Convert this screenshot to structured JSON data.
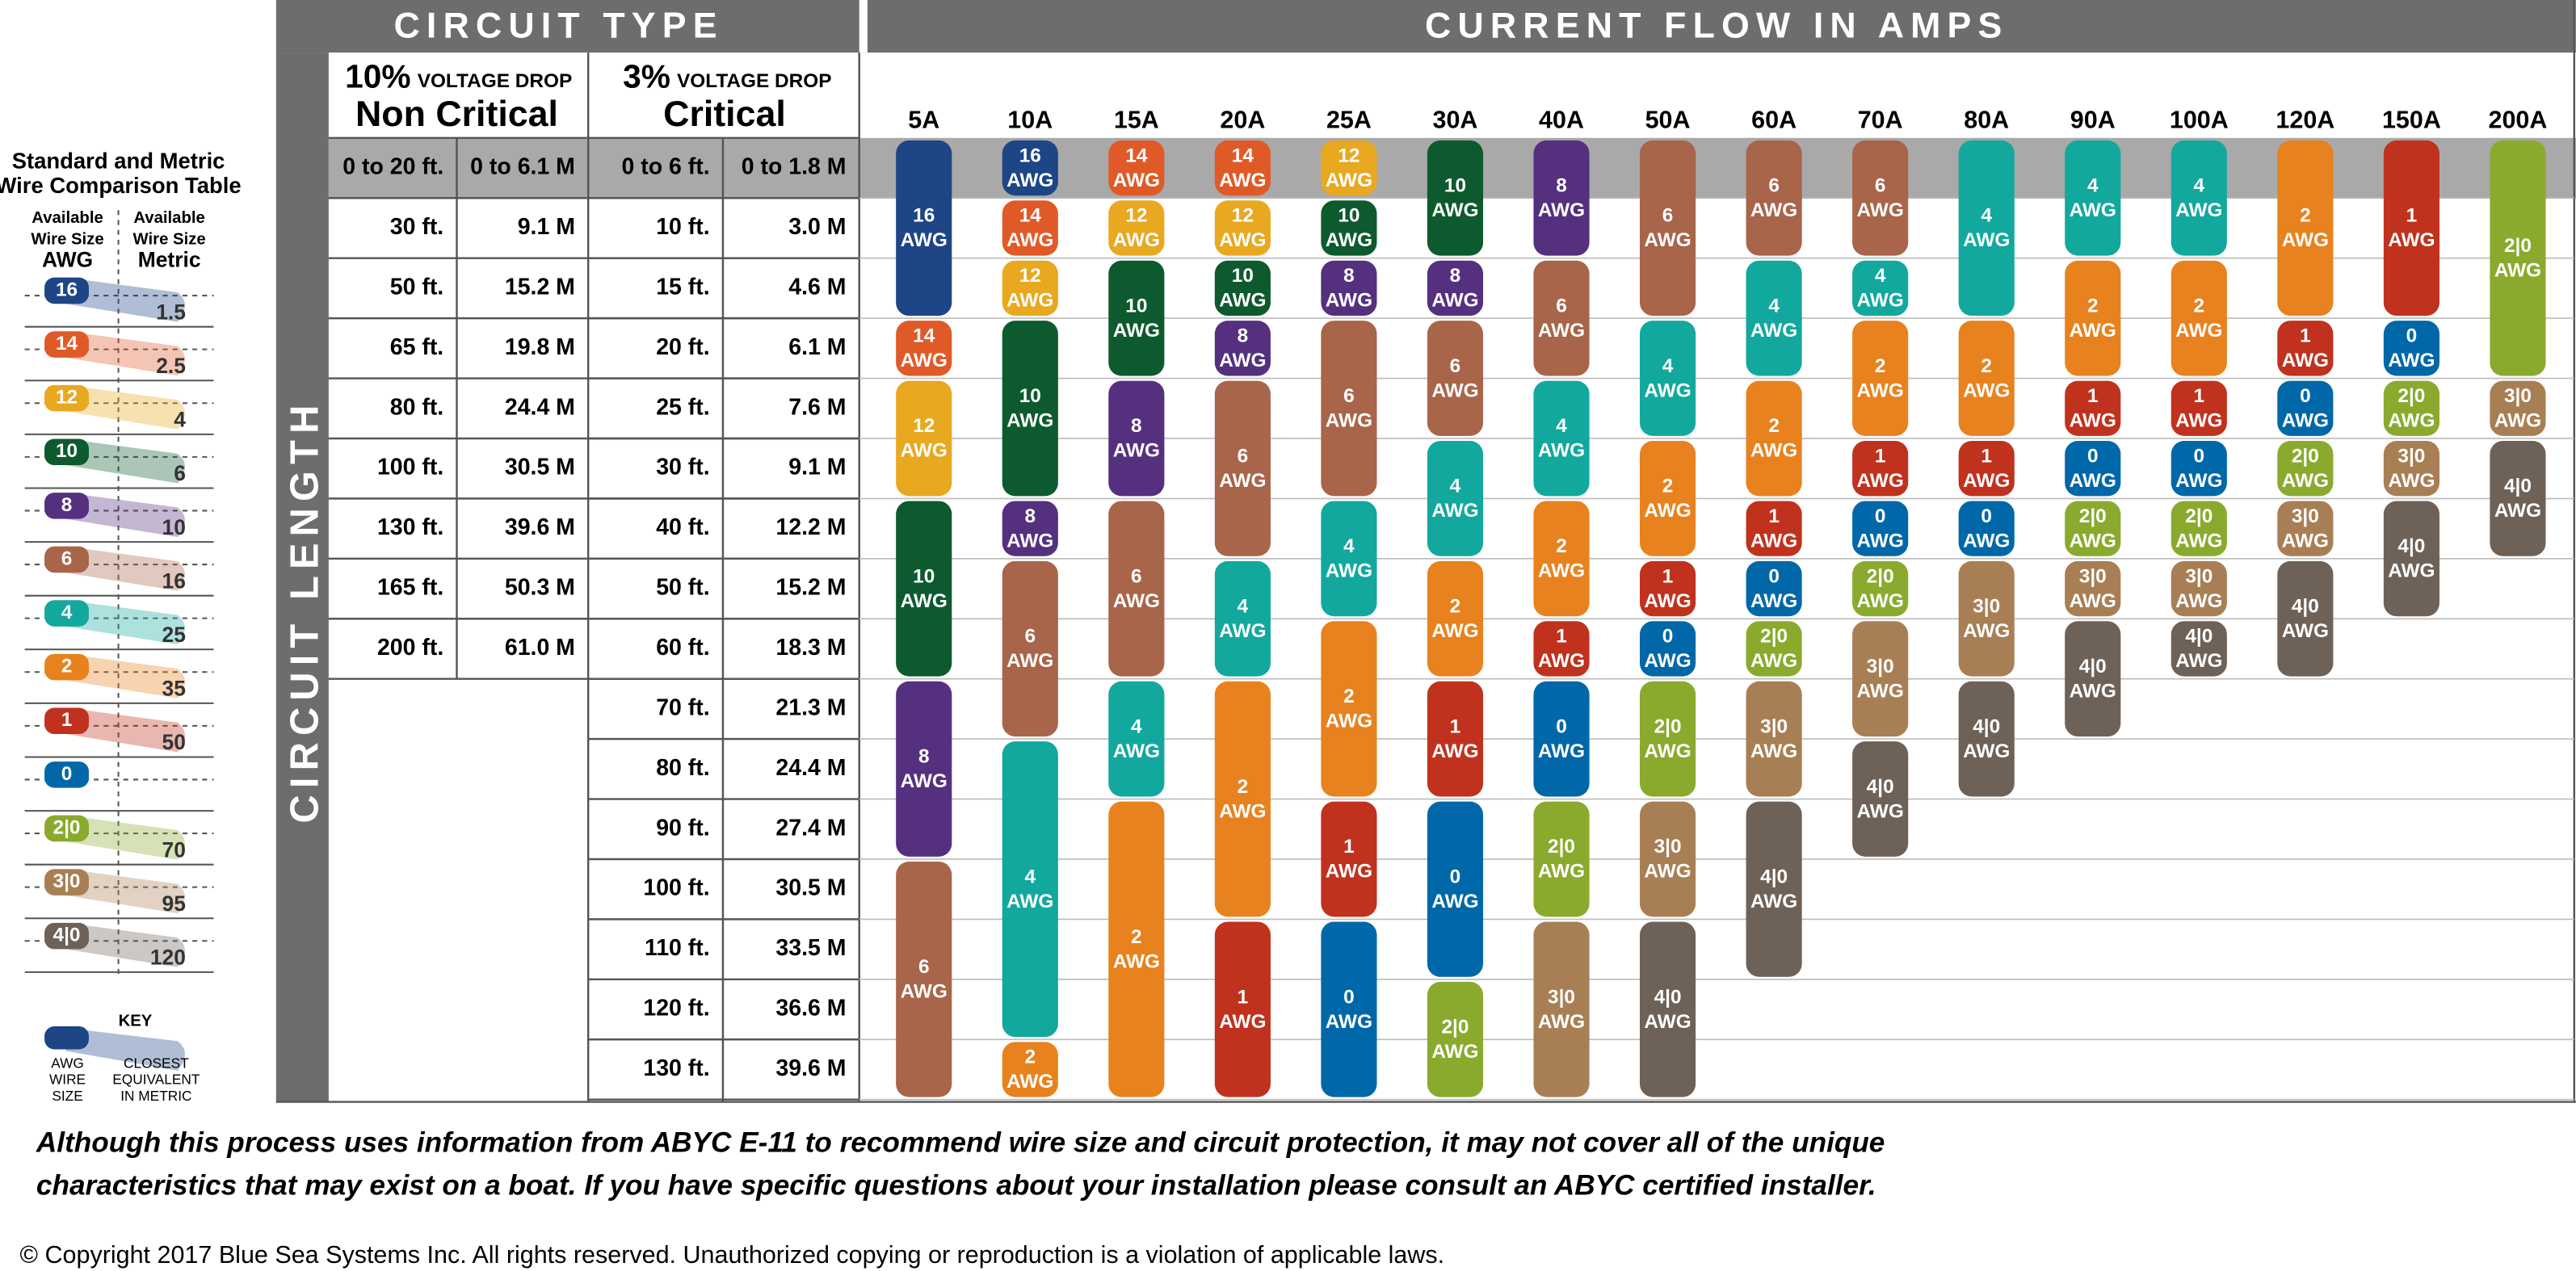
{
  "header": {
    "circuit_type": "CIRCUIT TYPE",
    "current_flow": "CURRENT FLOW IN AMPS",
    "circuit_length": "CIRCUIT LENGTH"
  },
  "non_critical": {
    "drop": "10%",
    "drop_label": "VOLTAGE DROP",
    "name": "Non Critical",
    "rows": [
      [
        "0 to 20 ft.",
        "0 to 6.1 M"
      ],
      [
        "30 ft.",
        "9.1 M"
      ],
      [
        "50 ft.",
        "15.2 M"
      ],
      [
        "65 ft.",
        "19.8 M"
      ],
      [
        "80 ft.",
        "24.4 M"
      ],
      [
        "100 ft.",
        "30.5 M"
      ],
      [
        "130 ft.",
        "39.6 M"
      ],
      [
        "165 ft.",
        "50.3 M"
      ],
      [
        "200 ft.",
        "61.0 M"
      ]
    ]
  },
  "critical": {
    "drop": "3%",
    "drop_label": "VOLTAGE DROP",
    "name": "Critical",
    "rows": [
      [
        "0 to 6 ft.",
        "0 to 1.8 M"
      ],
      [
        "10 ft.",
        "3.0 M"
      ],
      [
        "15 ft.",
        "4.6 M"
      ],
      [
        "20 ft.",
        "6.1 M"
      ],
      [
        "25 ft.",
        "7.6 M"
      ],
      [
        "30 ft.",
        "9.1 M"
      ],
      [
        "40 ft.",
        "12.2 M"
      ],
      [
        "50 ft.",
        "15.2 M"
      ],
      [
        "60 ft.",
        "18.3 M"
      ],
      [
        "70 ft.",
        "21.3 M"
      ],
      [
        "80 ft.",
        "24.4 M"
      ],
      [
        "90 ft.",
        "27.4 M"
      ],
      [
        "100 ft.",
        "30.5 M"
      ],
      [
        "110 ft.",
        "33.5 M"
      ],
      [
        "120 ft.",
        "36.6 M"
      ],
      [
        "130 ft.",
        "39.6 M"
      ]
    ]
  },
  "unit": "AWG",
  "wire_sizes": [
    {
      "awg": "16",
      "metric": "1.5",
      "color": "#1e4586"
    },
    {
      "awg": "14",
      "metric": "2.5",
      "color": "#e05a28"
    },
    {
      "awg": "12",
      "metric": "4",
      "color": "#e8a820"
    },
    {
      "awg": "10",
      "metric": "6",
      "color": "#0d5a2e"
    },
    {
      "awg": "8",
      "metric": "10",
      "color": "#55307f"
    },
    {
      "awg": "6",
      "metric": "16",
      "color": "#a8654a"
    },
    {
      "awg": "4",
      "metric": "25",
      "color": "#13a89e"
    },
    {
      "awg": "2",
      "metric": "35",
      "color": "#e8821e"
    },
    {
      "awg": "1",
      "metric": "50",
      "color": "#c0321e"
    },
    {
      "awg": "0",
      "color": "#0068a8"
    },
    {
      "awg": "2|0",
      "metric": "70",
      "color": "#8aaa2e"
    },
    {
      "awg": "3|0",
      "metric": "95",
      "color": "#a87f55"
    },
    {
      "awg": "4|0",
      "metric": "120",
      "color": "#6e6258"
    }
  ],
  "legend": {
    "title": [
      "Standard and Metric",
      "Wire Comparison Table"
    ],
    "awg_header": [
      "Available",
      "Wire Size",
      "AWG"
    ],
    "metric_header": [
      "Available",
      "Wire Size",
      "Metric"
    ],
    "key": "KEY",
    "key_awg": [
      "AWG",
      "WIRE",
      "SIZE"
    ],
    "key_metric": [
      "CLOSEST",
      "EQUIVALENT",
      "IN METRIC"
    ]
  },
  "amps": [
    {
      "label": "5A",
      "segments": [
        [
          "16",
          3
        ],
        [
          "14",
          1
        ],
        [
          "12",
          2
        ],
        [
          "10",
          3
        ],
        [
          "8",
          3
        ],
        [
          "6",
          4
        ]
      ]
    },
    {
      "label": "10A",
      "segments": [
        [
          "16",
          1
        ],
        [
          "14",
          1
        ],
        [
          "12",
          1
        ],
        [
          "10",
          3
        ],
        [
          "8",
          1
        ],
        [
          "6",
          3
        ],
        [
          "4",
          5
        ],
        [
          "2",
          1
        ]
      ]
    },
    {
      "label": "15A",
      "segments": [
        [
          "14",
          1
        ],
        [
          "12",
          1
        ],
        [
          "10",
          2
        ],
        [
          "8",
          2
        ],
        [
          "6",
          3
        ],
        [
          "4",
          2
        ],
        [
          "2",
          5
        ]
      ]
    },
    {
      "label": "20A",
      "segments": [
        [
          "14",
          1
        ],
        [
          "12",
          1
        ],
        [
          "10",
          1
        ],
        [
          "8",
          1
        ],
        [
          "6",
          3
        ],
        [
          "4",
          2
        ],
        [
          "2",
          4
        ],
        [
          "1",
          3
        ]
      ]
    },
    {
      "label": "25A",
      "segments": [
        [
          "12",
          1
        ],
        [
          "10",
          1
        ],
        [
          "8",
          1
        ],
        [
          "6",
          3
        ],
        [
          "4",
          2
        ],
        [
          "2",
          3
        ],
        [
          "1",
          2
        ],
        [
          "0",
          3
        ]
      ]
    },
    {
      "label": "30A",
      "segments": [
        [
          "10",
          2
        ],
        [
          "8",
          1
        ],
        [
          "6",
          2
        ],
        [
          "4",
          2
        ],
        [
          "2",
          2
        ],
        [
          "1",
          2
        ],
        [
          "0",
          3
        ],
        [
          "2|0",
          2
        ]
      ]
    },
    {
      "label": "40A",
      "segments": [
        [
          "8",
          2
        ],
        [
          "6",
          2
        ],
        [
          "4",
          2
        ],
        [
          "2",
          2
        ],
        [
          "1",
          1
        ],
        [
          "0",
          2
        ],
        [
          "2|0",
          2
        ],
        [
          "3|0",
          3
        ]
      ]
    },
    {
      "label": "50A",
      "segments": [
        [
          "6",
          3
        ],
        [
          "4",
          2
        ],
        [
          "2",
          2
        ],
        [
          "1",
          1
        ],
        [
          "0",
          1
        ],
        [
          "2|0",
          2
        ],
        [
          "3|0",
          2
        ],
        [
          "4|0",
          3
        ]
      ]
    },
    {
      "label": "60A",
      "segments": [
        [
          "6",
          2
        ],
        [
          "4",
          2
        ],
        [
          "2",
          2
        ],
        [
          "1",
          1
        ],
        [
          "0",
          1
        ],
        [
          "2|0",
          1
        ],
        [
          "3|0",
          2
        ],
        [
          "4|0",
          3
        ]
      ]
    },
    {
      "label": "70A",
      "segments": [
        [
          "6",
          2
        ],
        [
          "4",
          1
        ],
        [
          "2",
          2
        ],
        [
          "1",
          1
        ],
        [
          "0",
          1
        ],
        [
          "2|0",
          1
        ],
        [
          "3|0",
          2
        ],
        [
          "4|0",
          2
        ]
      ]
    },
    {
      "label": "80A",
      "segments": [
        [
          "4",
          3
        ],
        [
          "2",
          2
        ],
        [
          "1",
          1
        ],
        [
          "0",
          1
        ],
        [
          "3|0",
          2
        ],
        [
          "4|0",
          2
        ]
      ]
    },
    {
      "label": "90A",
      "segments": [
        [
          "4",
          2
        ],
        [
          "2",
          2
        ],
        [
          "1",
          1
        ],
        [
          "0",
          1
        ],
        [
          "2|0",
          1
        ],
        [
          "3|0",
          1
        ],
        [
          "4|0",
          2
        ]
      ]
    },
    {
      "label": "100A",
      "segments": [
        [
          "4",
          2
        ],
        [
          "2",
          2
        ],
        [
          "1",
          1
        ],
        [
          "0",
          1
        ],
        [
          "2|0",
          1
        ],
        [
          "3|0",
          1
        ],
        [
          "4|0",
          1
        ]
      ]
    },
    {
      "label": "120A",
      "segments": [
        [
          "2",
          3
        ],
        [
          "1",
          1
        ],
        [
          "0",
          1
        ],
        [
          "2|0",
          1
        ],
        [
          "3|0",
          1
        ],
        [
          "4|0",
          2
        ]
      ]
    },
    {
      "label": "150A",
      "segments": [
        [
          "1",
          3
        ],
        [
          "0",
          1
        ],
        [
          "2|0",
          1
        ],
        [
          "3|0",
          1
        ],
        [
          "4|0",
          2
        ]
      ]
    },
    {
      "label": "200A",
      "segments": [
        [
          "2|0",
          4
        ],
        [
          "3|0",
          1
        ],
        [
          "4|0",
          2
        ]
      ]
    }
  ],
  "footer": {
    "disclaimer": [
      "Although this process uses information from ABYC E-11 to recommend wire size and circuit protection, it may not cover all of the unique",
      "characteristics that may exist on a boat. If you have specific questions about your installation please consult an ABYC certified installer."
    ],
    "copyright": "© Copyright 2017 Blue Sea Systems Inc. All rights reserved. Unauthorized copying or reproduction is a violation of applicable laws."
  }
}
